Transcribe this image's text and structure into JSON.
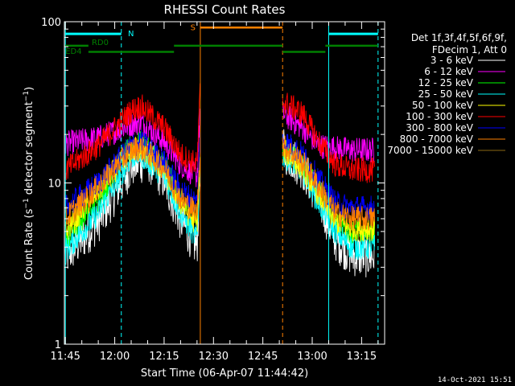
{
  "chart_data": {
    "type": "line",
    "title": "RHESSI Count Rates",
    "xlabel": "Start Time (06-Apr-07 11:44:42)",
    "ylabel_parts": [
      "Count Rate (s",
      "−1",
      " detector segment",
      "−1",
      ")"
    ],
    "ylabel": "Count Rate (s−1 detector segment−1)",
    "y_scale": "log",
    "ylim": [
      1,
      100
    ],
    "y_tick_labels": [
      "1",
      "10",
      "100"
    ],
    "xlim": [
      "11:44:42",
      "13:22:00"
    ],
    "x_tick_labels": [
      "11:45",
      "12:00",
      "12:15",
      "12:30",
      "12:45",
      "13:00",
      "13:15"
    ],
    "grid": false,
    "legend_position": "right",
    "legend_header": [
      "Det 1f,3f,4f,5f,6f,9f,",
      "FDecim 1, Att 0"
    ],
    "series": [
      {
        "name": "3 - 6 keV",
        "color": "#ffffff",
        "segments": [
          [
            [
              "11:45",
              3.5
            ],
            [
              "11:55",
              5.8
            ],
            [
              "12:05",
              12.8
            ],
            [
              "12:10",
              14.0
            ],
            [
              "12:15",
              10.5
            ],
            [
              "12:20",
              6.0
            ],
            [
              "12:25",
              4.0
            ],
            [
              "12:26",
              14.0
            ]
          ],
          [
            [
              "12:51",
              16.0
            ],
            [
              "12:57",
              12.5
            ],
            [
              "13:02",
              8.0
            ],
            [
              "13:07",
              4.5
            ],
            [
              "13:12",
              3.6
            ],
            [
              "13:19",
              3.5
            ]
          ]
        ]
      },
      {
        "name": "6 - 12 keV",
        "color": "#ff00ff",
        "segments": [
          [
            [
              "11:45",
              17.5
            ],
            [
              "11:55",
              19.0
            ],
            [
              "12:05",
              23.0
            ],
            [
              "12:08",
              24.0
            ],
            [
              "12:15",
              18.0
            ],
            [
              "12:20",
              13.0
            ],
            [
              "12:25",
              11.0
            ],
            [
              "12:26",
              30.0
            ]
          ],
          [
            [
              "12:51",
              27.0
            ],
            [
              "12:57",
              22.0
            ],
            [
              "13:02",
              17.0
            ],
            [
              "13:07",
              16.5
            ],
            [
              "13:12",
              16.0
            ],
            [
              "13:19",
              16.0
            ]
          ]
        ]
      },
      {
        "name": "12 - 25 keV",
        "color": "#00ff00",
        "segments": [
          [
            [
              "11:45",
              4.5
            ],
            [
              "11:55",
              8.0
            ],
            [
              "12:05",
              17.0
            ],
            [
              "12:08",
              17.5
            ],
            [
              "12:15",
              13.0
            ],
            [
              "12:20",
              8.0
            ],
            [
              "12:25",
              6.0
            ],
            [
              "12:26",
              16.0
            ]
          ],
          [
            [
              "12:51",
              16.5
            ],
            [
              "12:57",
              13.0
            ],
            [
              "13:02",
              9.0
            ],
            [
              "13:07",
              6.0
            ],
            [
              "13:12",
              5.0
            ],
            [
              "13:19",
              5.0
            ]
          ]
        ]
      },
      {
        "name": "25 - 50 keV",
        "color": "#00ffff",
        "segments": [
          [
            [
              "11:45",
              3.8
            ],
            [
              "11:55",
              6.5
            ],
            [
              "12:05",
              14.5
            ],
            [
              "12:08",
              15.0
            ],
            [
              "12:15",
              11.0
            ],
            [
              "12:20",
              6.5
            ],
            [
              "12:25",
              4.5
            ],
            [
              "12:26",
              13.0
            ]
          ],
          [
            [
              "12:51",
              15.0
            ],
            [
              "12:57",
              12.0
            ],
            [
              "13:02",
              7.5
            ],
            [
              "13:07",
              5.0
            ],
            [
              "13:12",
              4.0
            ],
            [
              "13:19",
              4.0
            ]
          ]
        ]
      },
      {
        "name": "50 - 100 keV",
        "color": "#ffff00",
        "segments": [
          [
            [
              "11:45",
              5.0
            ],
            [
              "11:55",
              9.0
            ],
            [
              "12:05",
              16.0
            ],
            [
              "12:08",
              16.5
            ],
            [
              "12:15",
              12.0
            ],
            [
              "12:20",
              7.5
            ],
            [
              "12:25",
              5.5
            ],
            [
              "12:26",
              15.0
            ]
          ],
          [
            [
              "12:51",
              16.0
            ],
            [
              "12:57",
              12.5
            ],
            [
              "13:02",
              8.5
            ],
            [
              "13:07",
              5.8
            ],
            [
              "13:12",
              5.2
            ],
            [
              "13:19",
              5.2
            ]
          ]
        ]
      },
      {
        "name": "100 - 300 keV",
        "color": "#ff0000",
        "segments": [
          [
            [
              "11:45",
              12.0
            ],
            [
              "11:55",
              17.0
            ],
            [
              "12:05",
              28.0
            ],
            [
              "12:08",
              30.0
            ],
            [
              "12:15",
              22.0
            ],
            [
              "12:20",
              15.0
            ],
            [
              "12:25",
              13.0
            ],
            [
              "12:26",
              40.0
            ]
          ],
          [
            [
              "12:51",
              32.0
            ],
            [
              "12:57",
              27.0
            ],
            [
              "13:02",
              18.0
            ],
            [
              "13:07",
              13.0
            ],
            [
              "13:12",
              12.0
            ],
            [
              "13:19",
              12.0
            ]
          ]
        ]
      },
      {
        "name": "300 - 800 keV",
        "color": "#0000ff",
        "segments": [
          [
            [
              "11:45",
              7.0
            ],
            [
              "11:55",
              10.0
            ],
            [
              "12:05",
              17.0
            ],
            [
              "12:08",
              18.0
            ],
            [
              "12:15",
              13.5
            ],
            [
              "12:20",
              9.0
            ],
            [
              "12:25",
              7.5
            ],
            [
              "12:26",
              20.0
            ]
          ],
          [
            [
              "12:51",
              18.5
            ],
            [
              "12:57",
              15.0
            ],
            [
              "13:02",
              10.5
            ],
            [
              "13:07",
              7.5
            ],
            [
              "13:12",
              7.0
            ],
            [
              "13:19",
              7.0
            ]
          ]
        ]
      },
      {
        "name": "800 - 7000 keV",
        "color": "#ff8000",
        "segments": [
          [
            [
              "11:45",
              6.0
            ],
            [
              "11:55",
              9.5
            ],
            [
              "12:05",
              16.0
            ],
            [
              "12:08",
              16.5
            ],
            [
              "12:15",
              12.5
            ],
            [
              "12:20",
              8.0
            ],
            [
              "12:25",
              6.5
            ],
            [
              "12:26",
              18.0
            ]
          ],
          [
            [
              "12:51",
              17.0
            ],
            [
              "12:57",
              13.5
            ],
            [
              "13:02",
              9.5
            ],
            [
              "13:07",
              6.5
            ],
            [
              "13:12",
              6.0
            ],
            [
              "13:19",
              6.0
            ]
          ]
        ]
      },
      {
        "name": "7000 - 15000 keV",
        "color": "#8b6914",
        "segments": []
      }
    ],
    "vertical_markers": [
      {
        "time": "11:45:00",
        "color": "#00ffff",
        "style": "solid"
      },
      {
        "time": "12:02:00",
        "color": "#00ffff",
        "style": "dashed"
      },
      {
        "time": "12:26:00",
        "color": "#ff8000",
        "style": "solid"
      },
      {
        "time": "12:51:00",
        "color": "#ff8000",
        "style": "dashed"
      },
      {
        "time": "13:05:00",
        "color": "#00ffff",
        "style": "solid"
      },
      {
        "time": "13:20:00",
        "color": "#00ffff",
        "style": "dashed"
      }
    ],
    "flag_bars": [
      {
        "color": "#00ffff",
        "level": 84,
        "from": "11:45",
        "to": "12:02"
      },
      {
        "color": "#00ffff",
        "level": 84,
        "from": "13:05",
        "to": "13:20"
      },
      {
        "color": "#ff8000",
        "level": 92,
        "from": "12:26",
        "to": "12:51"
      },
      {
        "color": "#007f00",
        "level": 71,
        "from": "11:45",
        "to": "11:52"
      },
      {
        "color": "#007f00",
        "level": 65,
        "from": "11:52",
        "to": "12:18"
      },
      {
        "color": "#007f00",
        "level": 71,
        "from": "12:18",
        "to": "12:51"
      },
      {
        "color": "#007f00",
        "level": 65,
        "from": "12:51",
        "to": "13:04"
      },
      {
        "color": "#007f00",
        "level": 71,
        "from": "13:04",
        "to": "13:20"
      }
    ],
    "flag_labels": [
      {
        "text": "N",
        "color": "#00ffff",
        "time": "12:04",
        "level": 85
      },
      {
        "text": "S",
        "color": "#ff8000",
        "time": "12:23",
        "level": 93
      },
      {
        "text": "RD0",
        "color": "#007f00",
        "time": "11:53",
        "level": 75
      },
      {
        "text": "ED4",
        "color": "#007f00",
        "time": "11:45",
        "level": 66
      }
    ]
  },
  "footer_timestamp": "14-Oct-2021 15:51"
}
